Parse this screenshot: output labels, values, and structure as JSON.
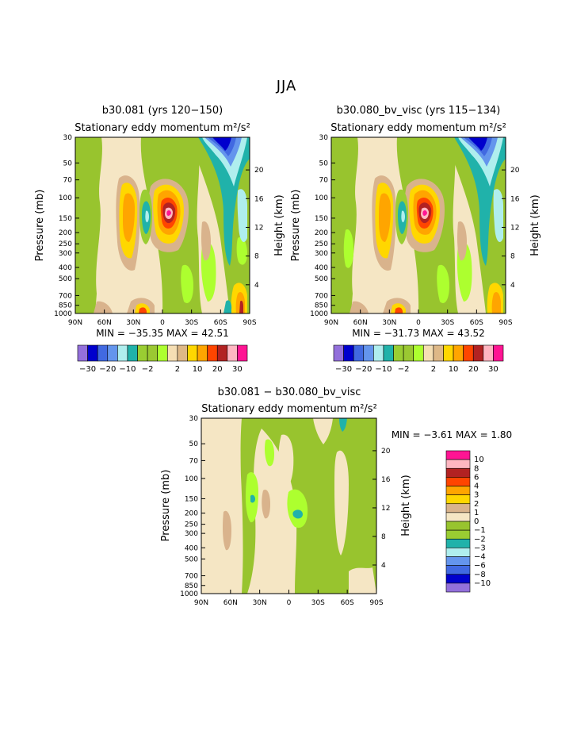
{
  "page": {
    "title": "JJA"
  },
  "colors": {
    "palette12": [
      "#9370db",
      "#0000cd",
      "#4169e1",
      "#6495ed",
      "#afeeee",
      "#20b2aa",
      "#9acd32",
      "#9bc832",
      "#adff2f",
      "#f5deb3",
      "#deb887",
      "#ffd700",
      "#ffa500",
      "#ff4500",
      "#b22222",
      "#ffb6c1",
      "#ff1493"
    ],
    "contour_colors": {
      "neg_10": "#9370db",
      "neg_8": "#0000cd",
      "neg_6": "#4169e1",
      "neg_4": "#6495ed",
      "neg_3": "#afeeee",
      "neg_2": "#20b2aa",
      "neg_1": "#9acd32",
      "zero": "#98c42e",
      "pos_0": "#f5e6c4",
      "pos_1": "#d9b38c",
      "pos_2": "#ffd700",
      "pos_3": "#ffa500",
      "pos_4": "#ff4500",
      "pos_6": "#b22222",
      "pos_8": "#ffb6c1",
      "pos_10": "#ff1493"
    }
  },
  "chart_data": [
    {
      "type": "heatmap",
      "title": "b30.081 (yrs 120−150)",
      "subtitle": "Stationary eddy momentum m²/s²",
      "ylabel_left": "Pressure (mb)",
      "ylabel_right": "Height (km)",
      "x_ticks": [
        "90N",
        "60N",
        "30N",
        "0",
        "30S",
        "60S",
        "90S"
      ],
      "y_ticks": [
        "30",
        "50",
        "70",
        "100",
        "150",
        "200",
        "250",
        "300",
        "400",
        "500",
        "700",
        "850",
        "1000"
      ],
      "height_ticks": [
        "20",
        "16",
        "12",
        "8",
        "4"
      ],
      "stats": "MIN = −35.35   MAX =   42.51",
      "min": -35.35,
      "max": 42.51,
      "colorbar_labels": [
        "−30",
        "−20",
        "−10",
        "−2",
        "2",
        "10",
        "20",
        "30"
      ]
    },
    {
      "type": "heatmap",
      "title": "b30.080_bv_visc (yrs 115−134)",
      "subtitle": "Stationary eddy momentum m²/s²",
      "ylabel_left": "Pressure (mb)",
      "ylabel_right": "Height (km)",
      "x_ticks": [
        "90N",
        "60N",
        "30N",
        "0",
        "30S",
        "60S",
        "90S"
      ],
      "y_ticks": [
        "30",
        "50",
        "70",
        "100",
        "150",
        "200",
        "250",
        "300",
        "400",
        "500",
        "700",
        "850",
        "1000"
      ],
      "height_ticks": [
        "20",
        "16",
        "12",
        "8",
        "4"
      ],
      "stats": "MIN = −31.73   MAX =   43.52",
      "min": -31.73,
      "max": 43.52,
      "colorbar_labels": [
        "−30",
        "−20",
        "−10",
        "−2",
        "2",
        "10",
        "20",
        "30"
      ]
    },
    {
      "type": "heatmap",
      "title": "b30.081 − b30.080_bv_visc",
      "subtitle": "Stationary eddy momentum m²/s²",
      "ylabel_left": "Pressure (mb)",
      "ylabel_right": "Height (km)",
      "x_ticks": [
        "90N",
        "60N",
        "30N",
        "0",
        "30S",
        "60S",
        "90S"
      ],
      "y_ticks": [
        "30",
        "50",
        "70",
        "100",
        "150",
        "200",
        "250",
        "300",
        "400",
        "500",
        "700",
        "850",
        "1000"
      ],
      "height_ticks": [
        "20",
        "16",
        "12",
        "8",
        "4"
      ],
      "stats": "MIN =   −3.61   MAX =   1.80",
      "min": -3.61,
      "max": 1.8,
      "colorbar_labels": [
        "10",
        "8",
        "6",
        "4",
        "3",
        "2",
        "1",
        "0",
        "−1",
        "−2",
        "−3",
        "−4",
        "−6",
        "−8",
        "−10"
      ]
    }
  ]
}
